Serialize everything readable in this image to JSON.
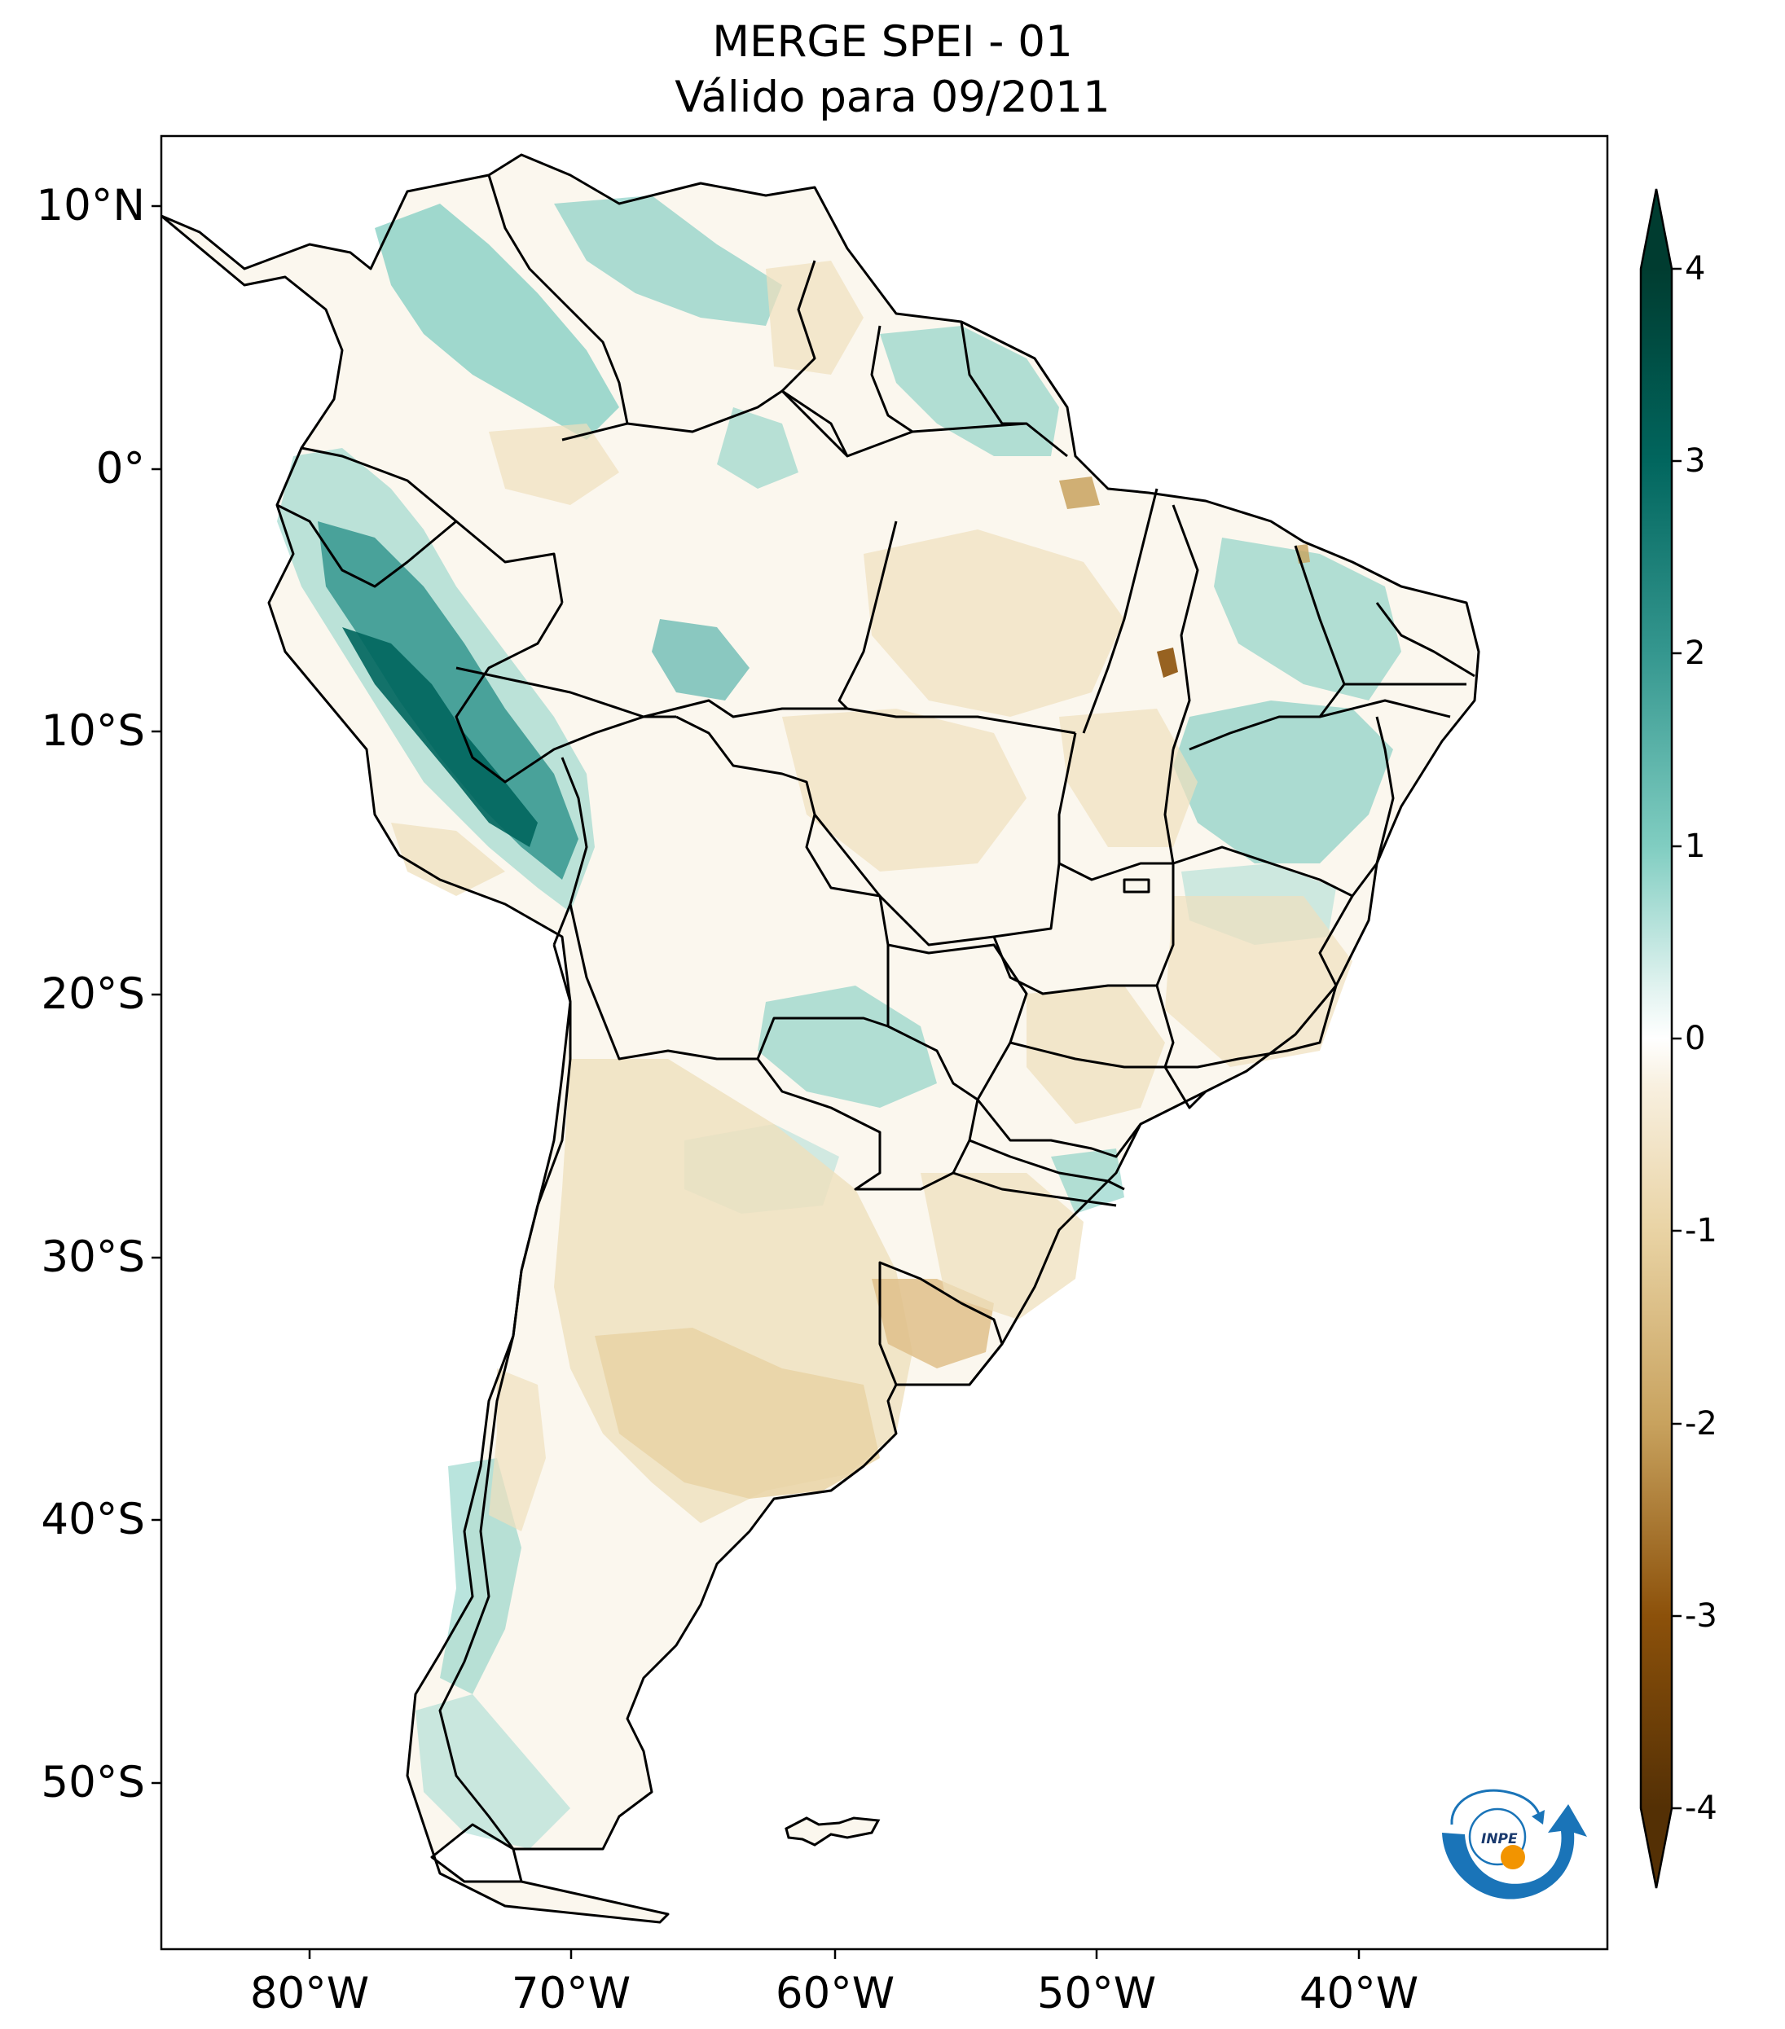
{
  "title": {
    "line1": "MERGE   SPEI - 01",
    "line2": "Válido para 09/2011"
  },
  "axes": {
    "lat_labels": [
      "10°N",
      "0°",
      "10°S",
      "20°S",
      "30°S",
      "40°S",
      "50°S"
    ],
    "lon_labels": [
      "80°W",
      "70°W",
      "60°W",
      "50°W",
      "40°W"
    ]
  },
  "colorbar": {
    "ticks": [
      "4",
      "3",
      "2",
      "1",
      "0",
      "-1",
      "-2",
      "-3",
      "-4"
    ],
    "range": [
      -4,
      4
    ],
    "colors": {
      "neg4": "#543005",
      "neg3": "#8c510a",
      "neg2": "#c8a25e",
      "neg1": "#efe0bd",
      "zero": "#ffffff",
      "pos1": "#c7eae5",
      "pos2": "#5ab4ac",
      "pos3": "#01665e",
      "pos4": "#003c30"
    }
  },
  "logo": {
    "text": "INPE",
    "colors": {
      "arrow": "#1a74b8",
      "dot": "#f29400"
    }
  }
}
